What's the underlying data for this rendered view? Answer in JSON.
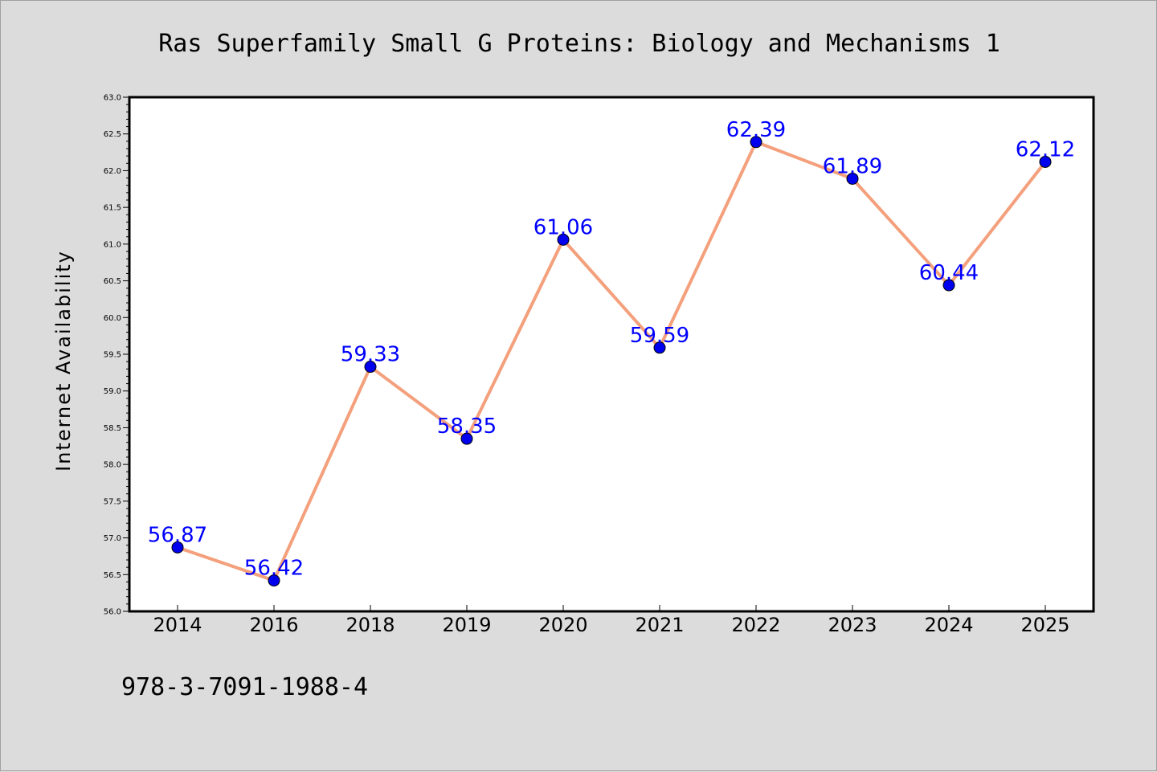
{
  "figure": {
    "background_color": "#dcdcdc",
    "isbn": "978-3-7091-1988-4"
  },
  "chart_data": {
    "type": "line",
    "title": "Ras Superfamily Small G Proteins: Biology and Mechanisms 1",
    "xlabel": "",
    "ylabel": "Internet Availability",
    "categories": [
      "2014",
      "2016",
      "2018",
      "2019",
      "2020",
      "2021",
      "2022",
      "2023",
      "2024",
      "2025"
    ],
    "series": [
      {
        "values": [
          56.87,
          56.42,
          59.33,
          58.35,
          61.06,
          59.59,
          62.39,
          61.89,
          60.44,
          62.12
        ],
        "value_labels": [
          "56.87",
          "56.42",
          "59.33",
          "58.35",
          "61.06",
          "59.59",
          "62.39",
          "61.89",
          "60.44",
          "62.12"
        ],
        "line_color": "#f4a07c",
        "marker_color": "#0000ee",
        "label_color": "#0000ff"
      }
    ],
    "ylim": [
      56.0,
      63.0
    ],
    "yticks": [
      "56.0",
      "56.5",
      "57.0",
      "57.5",
      "58.0",
      "58.5",
      "59.0",
      "59.5",
      "60.0",
      "60.5",
      "61.0",
      "61.5",
      "62.0",
      "62.5",
      "63.0"
    ],
    "grid": false,
    "legend": "none"
  }
}
